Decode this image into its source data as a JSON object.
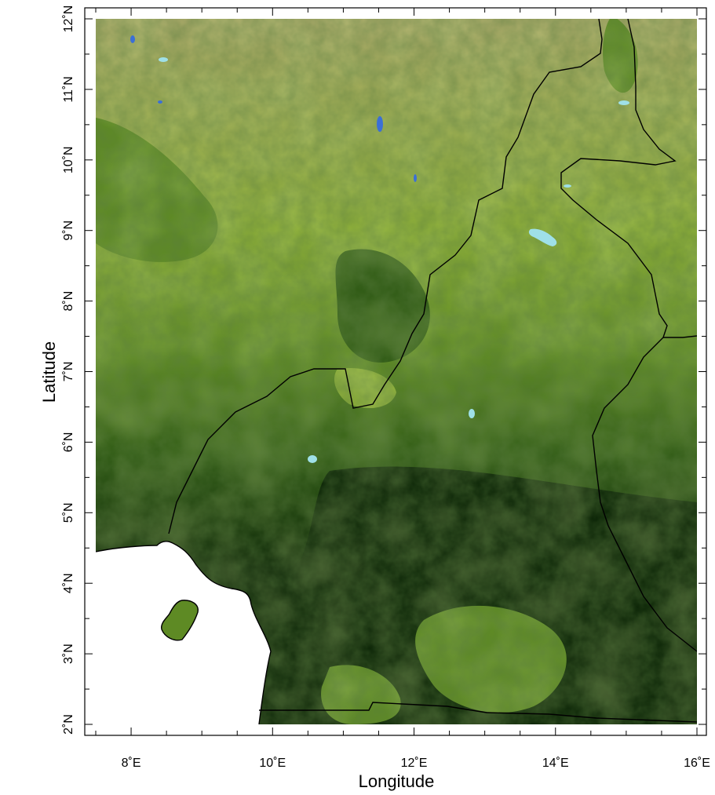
{
  "map": {
    "xlabel": "Longitude",
    "ylabel": "Latitude",
    "lon_range": [
      7.5,
      16.0
    ],
    "lat_range": [
      2.0,
      12.0
    ],
    "x_ticks": [
      {
        "value": 8,
        "label": "8˚E"
      },
      {
        "value": 10,
        "label": "10˚E"
      },
      {
        "value": 12,
        "label": "12˚E"
      },
      {
        "value": 14,
        "label": "14˚E"
      },
      {
        "value": 16,
        "label": "16˚E"
      }
    ],
    "y_ticks": [
      {
        "value": 2,
        "label": "2˚N"
      },
      {
        "value": 3,
        "label": "3˚N"
      },
      {
        "value": 4,
        "label": "4˚N"
      },
      {
        "value": 5,
        "label": "5˚N"
      },
      {
        "value": 6,
        "label": "6˚N"
      },
      {
        "value": 7,
        "label": "7˚N"
      },
      {
        "value": 8,
        "label": "8˚N"
      },
      {
        "value": 9,
        "label": "9˚N"
      },
      {
        "value": 10,
        "label": "10˚N"
      },
      {
        "value": 11,
        "label": "11˚N"
      },
      {
        "value": 12,
        "label": "12˚N"
      }
    ],
    "colors": {
      "sparse_vegetation": "#a8a868",
      "grassland": "#8cae38",
      "savanna": "#5e8a24",
      "woodland": "#2f5a14",
      "dense_forest": "#0b2406",
      "water": "#3b6fd6",
      "wetland": "#9fe0e8",
      "ocean": "#ffffff",
      "border": "#000000"
    }
  }
}
